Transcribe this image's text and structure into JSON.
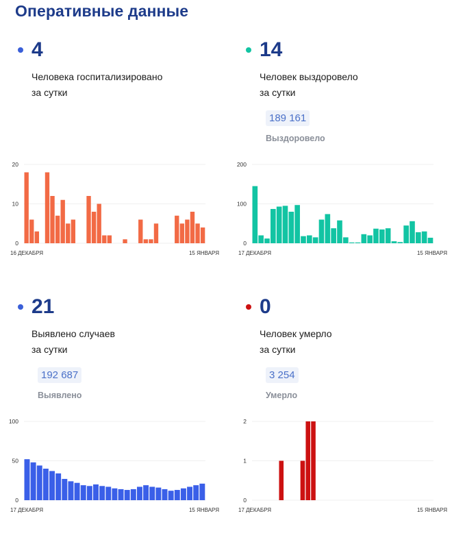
{
  "title": "Оперативные данные",
  "panels": [
    {
      "id": "hospitalized",
      "color": "#f26a45",
      "dot_color": "#3a5fd8",
      "number": "4",
      "desc_line1": "Человека госпитализировано",
      "desc_line2": "за сутки",
      "total": null,
      "total_label": null
    },
    {
      "id": "recovered",
      "color": "#12c4a3",
      "dot_color": "#12c4a3",
      "number": "14",
      "desc_line1": "Человек выздоровело",
      "desc_line2": "за сутки",
      "total": "189 161",
      "total_label": "Выздоровело"
    },
    {
      "id": "detected",
      "color": "#3a5fe8",
      "dot_color": "#3a5fd8",
      "number": "21",
      "desc_line1": "Выявлено случаев",
      "desc_line2": "за сутки",
      "total": "192 687",
      "total_label": "Выявлено"
    },
    {
      "id": "died",
      "color": "#cc1111",
      "dot_color": "#cc1111",
      "number": "0",
      "desc_line1": "Человек умерло",
      "desc_line2": "за сутки",
      "total": "3 254",
      "total_label": "Умерло"
    }
  ],
  "chart_data": [
    {
      "type": "bar",
      "title": "Человека госпитализировано за сутки",
      "color": "#f26a45",
      "x_start_label": "16 ДЕКАБРЯ",
      "x_end_label": "15 ЯНВАРЯ",
      "yticks": [
        0,
        10,
        20
      ],
      "ylim": [
        0,
        20
      ],
      "values": [
        18,
        6,
        3,
        0,
        18,
        12,
        7,
        11,
        5,
        6,
        0,
        0,
        12,
        8,
        10,
        2,
        2,
        0,
        0,
        1,
        0,
        0,
        6,
        1,
        1,
        5,
        0,
        0,
        0,
        7,
        5,
        6,
        8,
        5,
        4
      ]
    },
    {
      "type": "bar",
      "title": "Человек выздоровело за сутки",
      "color": "#12c4a3",
      "x_start_label": "17 ДЕКАБРЯ",
      "x_end_label": "15 ЯНВАРЯ",
      "yticks": [
        0,
        100,
        200
      ],
      "ylim": [
        0,
        200
      ],
      "values": [
        145,
        20,
        12,
        87,
        93,
        95,
        80,
        97,
        18,
        20,
        15,
        60,
        74,
        38,
        58,
        15,
        2,
        2,
        23,
        20,
        37,
        35,
        38,
        5,
        3,
        45,
        56,
        28,
        30,
        14
      ]
    },
    {
      "type": "bar",
      "title": "Выявлено случаев за сутки",
      "color": "#3a5fe8",
      "x_start_label": "17 ДЕКАБРЯ",
      "x_end_label": "15 ЯНВАРЯ",
      "yticks": [
        0,
        50,
        100
      ],
      "ylim": [
        0,
        100
      ],
      "values": [
        52,
        48,
        44,
        40,
        37,
        34,
        27,
        24,
        22,
        19,
        18,
        20,
        18,
        17,
        15,
        14,
        13,
        14,
        17,
        19,
        17,
        16,
        14,
        12,
        13,
        15,
        17,
        19,
        21
      ]
    },
    {
      "type": "bar",
      "title": "Человек умерло за сутки",
      "color": "#cc1111",
      "x_start_label": "17 ДЕКАБРЯ",
      "x_end_label": "15 ЯНВАРЯ",
      "yticks": [
        0,
        1,
        2
      ],
      "ylim": [
        0,
        2
      ],
      "values": [
        0,
        0,
        0,
        0,
        0,
        1,
        0,
        0,
        0,
        1,
        2,
        2,
        0,
        0,
        0,
        0,
        0,
        0,
        0,
        0,
        0,
        0,
        0,
        0,
        0,
        0,
        0,
        0,
        0,
        0,
        0,
        0,
        0,
        0
      ]
    }
  ]
}
